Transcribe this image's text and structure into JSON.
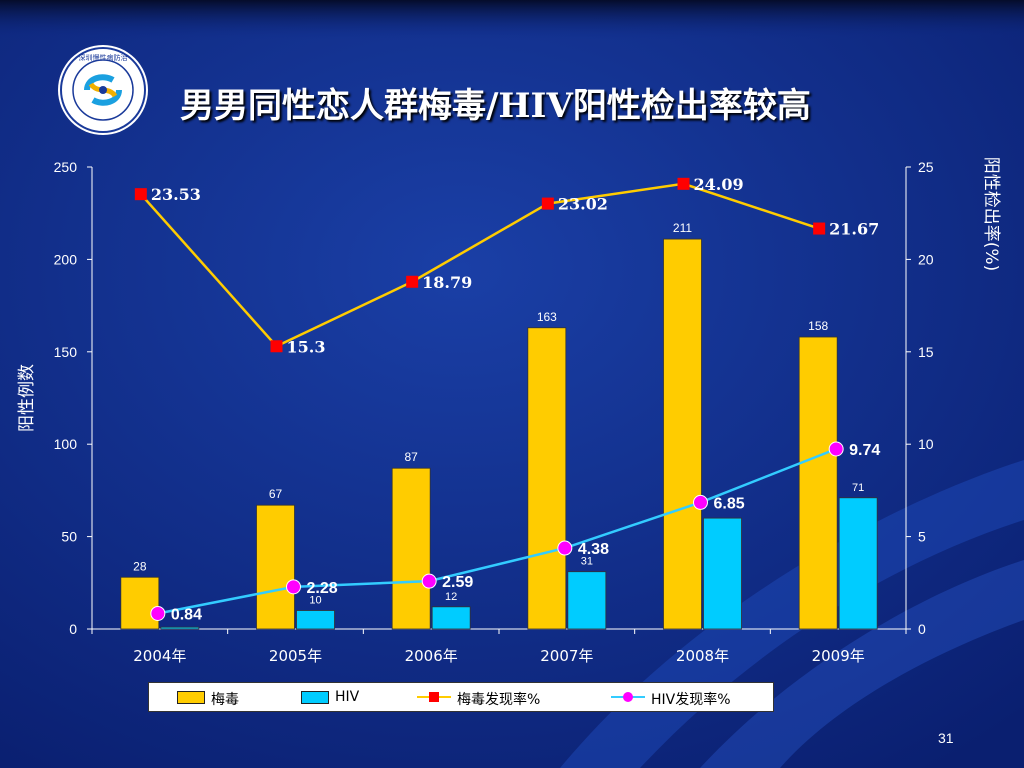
{
  "slide": {
    "title": "男男同性恋人群梅毒/HIV阳性检出率较高",
    "page_number": "31",
    "logo_text": "深圳慢性病防治 SHENZHEN CENTER FOR CHRONIC DISEASE CONTROL"
  },
  "colors": {
    "background": "#0d2a8c",
    "syphilis_bar": "#ffcc00",
    "hiv_bar": "#00ccff",
    "syphilis_line": "#ffcc00",
    "syphilis_marker": "#ff0000",
    "hiv_line": "#33ccff",
    "hiv_marker": "#ff00ff"
  },
  "legend": {
    "syphilis": "梅毒",
    "hiv": "HIV",
    "syphilis_rate": "梅毒发现率%",
    "hiv_rate": "HIV发现率%"
  },
  "chart_data": {
    "type": "bar",
    "categories": [
      "2004年",
      "2005年",
      "2006年",
      "2007年",
      "2008年",
      "2009年"
    ],
    "ylabel": "阳性例数",
    "y2label": "阳性检出率(%)",
    "ylim": [
      0,
      250
    ],
    "y2lim": [
      0,
      25
    ],
    "yticks": [
      "0",
      "50",
      "100",
      "150",
      "200",
      "250"
    ],
    "y2ticks": [
      "0",
      "5",
      "10",
      "15",
      "20",
      "25"
    ],
    "series": [
      {
        "name": "梅毒",
        "type": "bar",
        "axis": "left",
        "values": [
          28,
          67,
          87,
          163,
          211,
          158
        ]
      },
      {
        "name": "HIV",
        "type": "bar",
        "axis": "left",
        "values": [
          1,
          10,
          12,
          31,
          60,
          71
        ]
      },
      {
        "name": "梅毒发现率%",
        "type": "line",
        "axis": "right",
        "values": [
          23.53,
          15.3,
          18.79,
          23.02,
          24.09,
          21.67
        ]
      },
      {
        "name": "HIV发现率%",
        "type": "line",
        "axis": "right",
        "values": [
          0.84,
          2.28,
          2.59,
          4.38,
          6.85,
          9.74
        ]
      }
    ],
    "bar_labels": {
      "syphilis": [
        "28",
        "67",
        "87",
        "163",
        "211",
        "158"
      ],
      "hiv": [
        "",
        "10",
        "12",
        "31",
        "",
        "71"
      ]
    },
    "line_labels": {
      "syphilis_rate": [
        "23.53",
        "15.3",
        "18.79",
        "23.02",
        "24.09",
        "21.67"
      ],
      "hiv_rate": [
        "0.84",
        "2.28",
        "2.59",
        "4.38",
        "6.85",
        "9.74"
      ]
    },
    "legend_position": "bottom",
    "grid": false
  }
}
